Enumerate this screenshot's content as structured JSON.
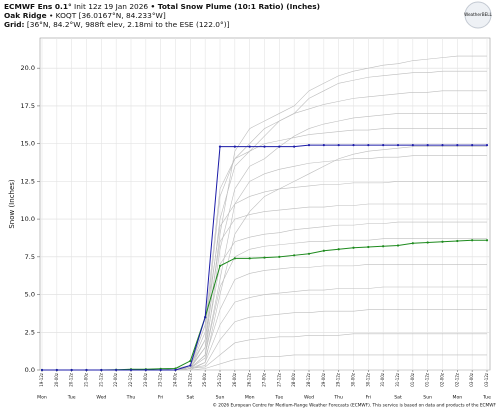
{
  "header": {
    "model": "ECMWF Ens 0.1°",
    "init": "Init 12z 19 Jan 2026",
    "product": "• Total Snow Plume (10:1 Ratio) (Inches)",
    "place": "Oak Ridge",
    "station": "• KOQT [36.0167°N, 84.233°W]",
    "grid_label": "Grid:",
    "grid": "[36°N, 84.2°W, 988ft elev, 2.18mi to the ESE (122.0°)]",
    "logo": "WeatherBELL"
  },
  "footer": [
    "© 2026 European Centre for Medium-Range Weather Forecasts (ECMWF). This service is based on data and products of the ECMWF"
  ],
  "chart_data": {
    "type": "line",
    "y_label": "Snow (Inches)",
    "categories": [
      "19-12z",
      "20-00z",
      "20-12z",
      "21-00z",
      "21-12z",
      "22-00z",
      "22-12z",
      "23-00z",
      "23-12z",
      "24-00z",
      "24-12z",
      "25-00z",
      "25-12z",
      "26-00z",
      "26-12z",
      "27-00z",
      "27-12z",
      "28-00z",
      "28-12z",
      "29-00z",
      "29-12z",
      "30-00z",
      "30-12z",
      "31-00z",
      "31-12z",
      "01-00z",
      "01-12z",
      "02-00z",
      "02-12z",
      "03-00z",
      "03-12z"
    ],
    "day_labels": [
      "Mon",
      "Tue",
      "Wed",
      "Thu",
      "Fri",
      "Sat",
      "Sun",
      "Mon",
      "Tue",
      "Wed",
      "Thu",
      "Fri",
      "Sat",
      "Sun",
      "Mon",
      "Tue"
    ],
    "ylim": [
      0,
      22
    ],
    "yticks": [
      {
        "value": 0,
        "label": "0.0"
      },
      {
        "value": 2.5,
        "label": "2.5"
      },
      {
        "value": 5,
        "label": "5.0"
      },
      {
        "value": 7.5,
        "label": "7.5"
      },
      {
        "value": 10,
        "label": "10.0"
      },
      {
        "value": 12.5,
        "label": "12.5"
      },
      {
        "value": 15,
        "label": "15.0"
      },
      {
        "value": 17.5,
        "label": "17.5"
      },
      {
        "value": 20,
        "label": "20.0"
      }
    ],
    "grid": true,
    "series": [
      {
        "color": "#bdbdbd",
        "values": [
          0,
          0,
          0,
          0,
          0,
          0,
          0,
          0,
          0,
          0,
          0.1,
          1.5,
          9.0,
          14.5,
          16.0,
          16.5,
          17.0,
          17.5,
          18.5,
          19.0,
          19.5,
          19.8,
          20.0,
          20.2,
          20.3,
          20.5,
          20.6,
          20.7,
          20.8,
          20.8,
          20.8
        ]
      },
      {
        "color": "#bdbdbd",
        "values": [
          0,
          0,
          0,
          0,
          0,
          0,
          0,
          0,
          0,
          0,
          0.2,
          3.0,
          12.0,
          14.0,
          15.0,
          16.0,
          16.5,
          17.0,
          18.0,
          18.5,
          19.0,
          19.2,
          19.4,
          19.5,
          19.6,
          19.7,
          19.7,
          19.8,
          19.8,
          19.8,
          19.8
        ]
      },
      {
        "color": "#bdbdbd",
        "values": [
          0,
          0,
          0,
          0,
          0,
          0,
          0,
          0,
          0,
          0.1,
          0.3,
          2.0,
          10.0,
          13.5,
          14.5,
          15.5,
          16.5,
          17.0,
          17.3,
          17.6,
          17.8,
          18.0,
          18.1,
          18.2,
          18.3,
          18.4,
          18.4,
          18.5,
          18.5,
          18.5,
          18.5
        ]
      },
      {
        "color": "#bdbdbd",
        "values": [
          0,
          0,
          0,
          0,
          0,
          0,
          0,
          0,
          0,
          0,
          0.1,
          1.0,
          8.0,
          12.0,
          13.5,
          14.0,
          14.8,
          15.5,
          16.0,
          16.3,
          16.5,
          16.7,
          16.8,
          16.9,
          17.0,
          17.0,
          17.0,
          17.0,
          17.0,
          17.0,
          17.0
        ]
      },
      {
        "color": "#bdbdbd",
        "values": [
          0,
          0,
          0,
          0,
          0,
          0,
          0,
          0,
          0,
          0,
          0.2,
          2.5,
          11.5,
          14.0,
          14.5,
          15.0,
          15.2,
          15.4,
          15.6,
          15.7,
          15.8,
          15.9,
          15.9,
          16.0,
          16.0,
          16.0,
          16.0,
          16.0,
          16.0,
          16.0,
          16.0
        ]
      },
      {
        "color": "#bdbdbd",
        "values": [
          0,
          0,
          0,
          0,
          0,
          0,
          0,
          0,
          0,
          0,
          0.1,
          1.0,
          6.0,
          11.0,
          12.5,
          13.0,
          13.3,
          13.5,
          13.7,
          13.8,
          13.9,
          14.0,
          14.0,
          14.1,
          14.1,
          14.2,
          14.2,
          14.2,
          14.2,
          14.2,
          14.2
        ]
      },
      {
        "color": "#bdbdbd",
        "values": [
          0,
          0,
          0,
          0,
          0,
          0,
          0,
          0,
          0,
          0,
          0.3,
          3.0,
          9.5,
          11.0,
          11.5,
          11.8,
          12.0,
          12.1,
          12.2,
          12.3,
          12.3,
          12.4,
          12.4,
          12.4,
          12.5,
          12.5,
          12.5,
          12.5,
          12.5,
          12.5,
          12.5
        ]
      },
      {
        "color": "#bdbdbd",
        "values": [
          0,
          0,
          0,
          0,
          0,
          0,
          0,
          0,
          0,
          0,
          0.1,
          2.0,
          8.5,
          10.0,
          10.3,
          10.5,
          10.6,
          10.7,
          10.8,
          10.8,
          10.9,
          10.9,
          11.0,
          11.0,
          11.0,
          11.0,
          11.0,
          11.0,
          11.0,
          11.0,
          11.0
        ]
      },
      {
        "color": "#bdbdbd",
        "values": [
          0,
          0,
          0,
          0,
          0,
          0,
          0,
          0,
          0,
          0,
          0.2,
          1.5,
          7.0,
          8.5,
          8.8,
          9.0,
          9.1,
          9.3,
          9.4,
          9.5,
          9.6,
          9.6,
          9.7,
          9.7,
          9.8,
          9.8,
          9.8,
          9.8,
          9.8,
          9.8,
          9.8
        ]
      },
      {
        "color": "#bdbdbd",
        "values": [
          0,
          0,
          0,
          0,
          0,
          0,
          0,
          0,
          0,
          0,
          0.1,
          1.0,
          5.5,
          7.5,
          8.0,
          8.2,
          8.3,
          8.4,
          8.5,
          8.5,
          8.6,
          8.6,
          8.6,
          8.7,
          8.7,
          8.7,
          8.7,
          8.7,
          8.7,
          8.7,
          8.7
        ]
      },
      {
        "color": "#bdbdbd",
        "values": [
          0,
          0,
          0,
          0,
          0,
          0,
          0,
          0,
          0,
          0,
          0.1,
          0.8,
          4.0,
          6.0,
          6.4,
          6.6,
          6.7,
          6.8,
          6.8,
          6.9,
          6.9,
          6.9,
          7.0,
          7.0,
          7.0,
          7.0,
          7.0,
          7.0,
          7.0,
          7.0,
          7.0
        ]
      },
      {
        "color": "#bdbdbd",
        "values": [
          0,
          0,
          0,
          0,
          0,
          0,
          0,
          0,
          0,
          0,
          0.1,
          0.5,
          3.0,
          4.5,
          4.8,
          5.0,
          5.1,
          5.2,
          5.3,
          5.3,
          5.4,
          5.4,
          5.4,
          5.5,
          5.5,
          5.5,
          5.5,
          5.5,
          5.5,
          5.5,
          5.5
        ]
      },
      {
        "color": "#bdbdbd",
        "values": [
          0,
          0,
          0,
          0,
          0,
          0,
          0,
          0,
          0,
          0,
          0.1,
          0.3,
          2.0,
          3.2,
          3.5,
          3.6,
          3.7,
          3.8,
          3.8,
          3.9,
          3.9,
          3.9,
          4.0,
          4.0,
          4.0,
          4.0,
          4.0,
          4.0,
          4.0,
          4.0,
          4.0
        ]
      },
      {
        "color": "#bdbdbd",
        "values": [
          0,
          0,
          0,
          0,
          0,
          0,
          0,
          0,
          0,
          0,
          0.1,
          0.2,
          1.0,
          1.8,
          2.0,
          2.1,
          2.2,
          2.2,
          2.3,
          2.3,
          2.3,
          2.4,
          2.4,
          2.4,
          2.4,
          2.4,
          2.4,
          2.4,
          2.4,
          2.4,
          2.4
        ]
      },
      {
        "color": "#bdbdbd",
        "values": [
          0,
          0,
          0,
          0,
          0,
          0,
          0,
          0,
          0,
          0,
          0,
          0.1,
          0.4,
          0.7,
          0.8,
          0.9,
          0.9,
          1.0,
          1.0,
          1.0,
          1.0,
          1.0,
          1.0,
          1.0,
          1.0,
          1.0,
          1.0,
          1.0,
          1.0,
          1.0,
          1.0
        ]
      },
      {
        "color": "#bdbdbd",
        "values": [
          0,
          0,
          0,
          0,
          0,
          0,
          0,
          0,
          0,
          0,
          0,
          0.5,
          5.0,
          9.0,
          10.5,
          11.5,
          12.0,
          12.5,
          13.0,
          13.5,
          14.0,
          14.3,
          14.5,
          14.6,
          14.7,
          14.8,
          14.8,
          14.8,
          14.8,
          14.8,
          14.8
        ]
      },
      {
        "color": "#1d8a1d",
        "markers": true,
        "values": [
          0,
          0,
          0,
          0,
          0,
          0.02,
          0.05,
          0.05,
          0.08,
          0.1,
          0.6,
          3.5,
          6.9,
          7.4,
          7.4,
          7.45,
          7.5,
          7.6,
          7.7,
          7.9,
          8.0,
          8.1,
          8.15,
          8.2,
          8.25,
          8.4,
          8.45,
          8.5,
          8.55,
          8.6,
          8.6
        ]
      },
      {
        "color": "#1c1ca8",
        "markers": true,
        "values": [
          0,
          0,
          0,
          0,
          0,
          0,
          0,
          0,
          0,
          0,
          0.3,
          3.5,
          14.8,
          14.8,
          14.8,
          14.8,
          14.8,
          14.8,
          14.9,
          14.9,
          14.9,
          14.9,
          14.9,
          14.9,
          14.9,
          14.9,
          14.9,
          14.9,
          14.9,
          14.9,
          14.9
        ]
      }
    ]
  }
}
